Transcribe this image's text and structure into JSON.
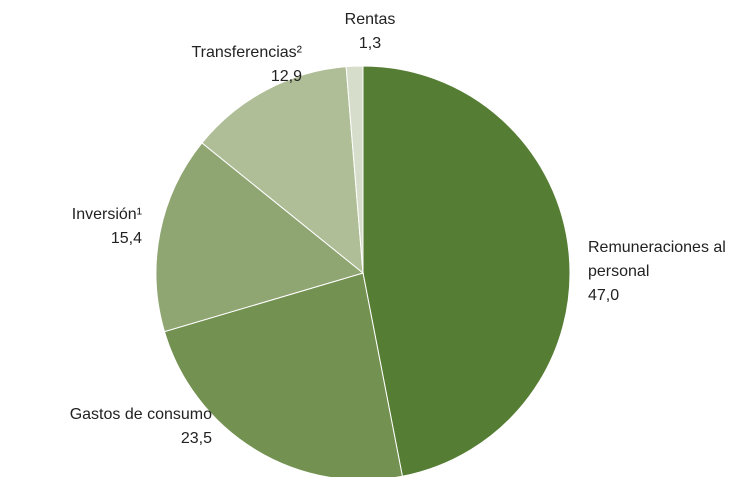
{
  "chart_data": {
    "type": "pie",
    "categories": [
      "Remuneraciones al personal",
      "Gastos de consumo",
      "Inversión¹",
      "Transferencias²",
      "Rentas"
    ],
    "values": [
      47.0,
      23.5,
      15.4,
      12.9,
      1.3
    ],
    "value_labels": [
      "47,0",
      "23,5",
      "15,4",
      "12,9",
      "1,3"
    ],
    "colors": [
      "#567d34",
      "#739150",
      "#8fa572",
      "#afbe96",
      "#d6decb"
    ]
  }
}
